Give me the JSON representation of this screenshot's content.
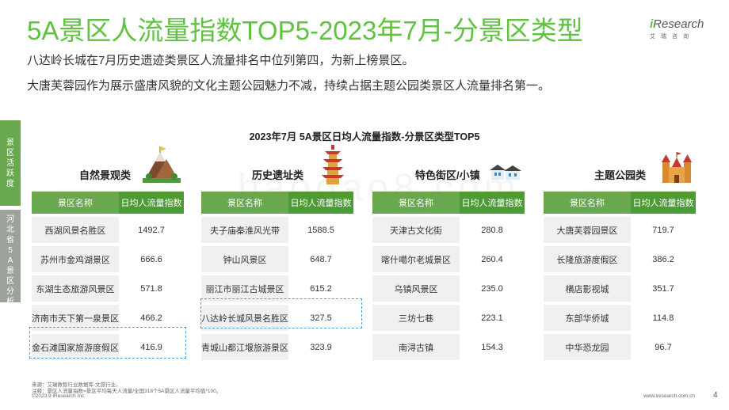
{
  "title": "5A景区人流量指数TOP5-2023年7月-分景区类型",
  "logo": {
    "brand_i": "i",
    "brand_rest": "Research",
    "sub": "艾瑞咨询"
  },
  "subtitles": [
    "八达岭长城在7月历史遗迹类景区人流量排名中位列第四，为新上榜景区。",
    "大唐芙蓉园作为展示盛唐风貌的文化主题公园魅力不减，持续占据主题公园类景区人流量排名第一。"
  ],
  "side_tabs": [
    "景区活跃度",
    "河北省5A景区分析"
  ],
  "chart_title": "2023年7月 5A景区日均人流量指数-分景区类型TOP5",
  "watermark": "baogao8.com",
  "columns": {
    "name": "景区名称",
    "index": "日均人流量指数"
  },
  "categories": [
    {
      "title": "自然景观类",
      "icon": "mountain-icon",
      "rows": [
        {
          "name": "西湖风景名胜区",
          "value": "1492.7"
        },
        {
          "name": "苏州市金鸡湖景区",
          "value": "666.6"
        },
        {
          "name": "东湖生态旅游风景区",
          "value": "571.8"
        },
        {
          "name": "济南市天下第一泉景区",
          "value": "466.2"
        },
        {
          "name": "金石滩国家旅游度假区",
          "value": "416.9"
        }
      ]
    },
    {
      "title": "历史遗址类",
      "icon": "pagoda-icon",
      "rows": [
        {
          "name": "夫子庙秦淮风光带",
          "value": "1588.5"
        },
        {
          "name": "钟山风景区",
          "value": "648.7"
        },
        {
          "name": "丽江市丽江古城景区",
          "value": "615.2"
        },
        {
          "name": "八达岭长城风景名胜区",
          "value": "327.5"
        },
        {
          "name": "青城山都江堰旅游景区",
          "value": "323.9"
        }
      ]
    },
    {
      "title": "特色街区/小镇",
      "icon": "houses-icon",
      "rows": [
        {
          "name": "天津古文化街",
          "value": "280.8"
        },
        {
          "name": "喀什噶尔老城景区",
          "value": "260.4"
        },
        {
          "name": "乌镇风景区",
          "value": "235.0"
        },
        {
          "name": "三坊七巷",
          "value": "223.1"
        },
        {
          "name": "南浔古镇",
          "value": "154.3"
        }
      ]
    },
    {
      "title": "主题公园类",
      "icon": "castle-icon",
      "rows": [
        {
          "name": "大唐芙蓉园景区",
          "value": "719.7"
        },
        {
          "name": "长隆旅游度假区",
          "value": "386.2"
        },
        {
          "name": "横店影视城",
          "value": "351.7"
        },
        {
          "name": "东部华侨城",
          "value": "114.8"
        },
        {
          "name": "中华恐龙园",
          "value": "96.7"
        }
      ]
    }
  ],
  "footnotes": [
    "来源：艾瑞数智行业数据库-文旅行业。",
    "注释：景区人流量指数=景区平均每天人流量/全国318个5A景区人流量平均值*100。",
    "©2023.9 iResearch Inc."
  ],
  "website": "www.iresearch.com.cn",
  "page_number": "4",
  "colors": {
    "accent": "#5fc240",
    "header": "#6aa84f",
    "highlight": "#4aa3df"
  }
}
